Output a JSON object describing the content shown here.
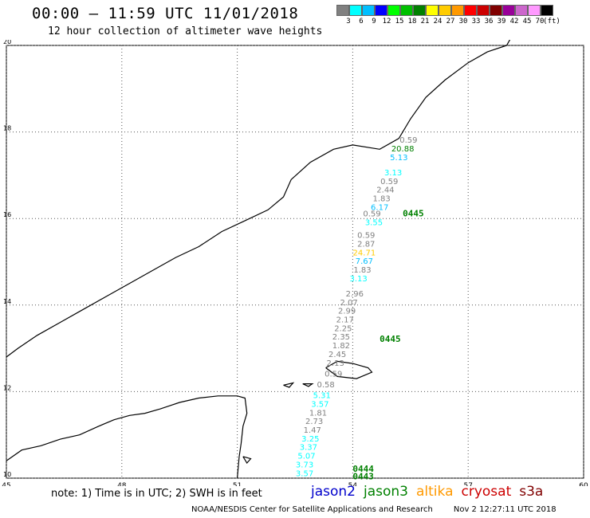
{
  "header": {
    "title": "00:00 — 11:59 UTC 11/01/2018",
    "subtitle": "12 hour collection of altimeter wave heights"
  },
  "legend": {
    "colors": [
      "#808080",
      "#00ffff",
      "#00bfff",
      "#0000ff",
      "#00ff00",
      "#00c000",
      "#008000",
      "#ffff00",
      "#ffcc00",
      "#ff9900",
      "#ff0000",
      "#cc0000",
      "#800000",
      "#990099",
      "#cc66cc",
      "#ff99ff",
      "#000000"
    ],
    "labels": [
      "3",
      "6",
      "9",
      "12",
      "15",
      "18",
      "21",
      "24",
      "27",
      "30",
      "33",
      "36",
      "39",
      "42",
      "45",
      "70",
      "(ft)"
    ]
  },
  "axes": {
    "x_ticks": [
      "45",
      "48",
      "51",
      "54",
      "57",
      "60"
    ],
    "y_ticks": [
      "20",
      "18",
      "16",
      "14",
      "12",
      "10"
    ],
    "xlim": [
      45,
      60
    ],
    "ylim": [
      10,
      20
    ],
    "grid": true
  },
  "coastline": {
    "main": [
      [
        45,
        10.4
      ],
      [
        45.4,
        10.65
      ],
      [
        45.9,
        10.75
      ],
      [
        46.4,
        10.9
      ],
      [
        46.9,
        11.0
      ],
      [
        47.4,
        11.2
      ],
      [
        47.8,
        11.35
      ],
      [
        48.2,
        11.45
      ],
      [
        48.6,
        11.5
      ],
      [
        49,
        11.6
      ],
      [
        49.5,
        11.75
      ],
      [
        50,
        11.85
      ],
      [
        50.5,
        11.9
      ],
      [
        51.0,
        11.9
      ],
      [
        51.2,
        11.85
      ],
      [
        51.25,
        11.5
      ],
      [
        51.15,
        11.2
      ],
      [
        51.1,
        10.8
      ],
      [
        51.05,
        10.5
      ],
      [
        51.0,
        10.0
      ]
    ],
    "arabia": [
      [
        45,
        12.8
      ],
      [
        45.3,
        13.0
      ],
      [
        45.8,
        13.3
      ],
      [
        46.4,
        13.6
      ],
      [
        47,
        13.9
      ],
      [
        47.6,
        14.2
      ],
      [
        48.2,
        14.5
      ],
      [
        48.8,
        14.8
      ],
      [
        49.4,
        15.1
      ],
      [
        50,
        15.35
      ],
      [
        50.6,
        15.7
      ],
      [
        51.2,
        15.95
      ],
      [
        51.8,
        16.2
      ],
      [
        52.2,
        16.5
      ],
      [
        52.4,
        16.9
      ],
      [
        52.9,
        17.3
      ],
      [
        53.5,
        17.6
      ],
      [
        54,
        17.7
      ],
      [
        54.7,
        17.6
      ],
      [
        55.2,
        17.85
      ],
      [
        55.5,
        18.3
      ],
      [
        55.9,
        18.8
      ],
      [
        56.4,
        19.2
      ],
      [
        57,
        19.6
      ],
      [
        57.5,
        19.85
      ],
      [
        58,
        20.0
      ],
      [
        58.5,
        20.8
      ]
    ],
    "socotra": [
      [
        53.3,
        12.55
      ],
      [
        53.6,
        12.7
      ],
      [
        54.0,
        12.65
      ],
      [
        54.4,
        12.55
      ],
      [
        54.5,
        12.45
      ],
      [
        54.1,
        12.3
      ],
      [
        53.6,
        12.35
      ],
      [
        53.3,
        12.55
      ]
    ],
    "islets": [
      [
        [
          52.2,
          12.15
        ],
        [
          52.45,
          12.2
        ],
        [
          52.35,
          12.1
        ],
        [
          52.2,
          12.15
        ]
      ],
      [
        [
          52.7,
          12.18
        ],
        [
          52.95,
          12.18
        ],
        [
          52.85,
          12.12
        ],
        [
          52.7,
          12.18
        ]
      ],
      [
        [
          51.15,
          10.5
        ],
        [
          51.35,
          10.45
        ],
        [
          51.25,
          10.35
        ],
        [
          51.15,
          10.5
        ]
      ]
    ]
  },
  "tracks": [
    {
      "sat": "jason3",
      "label": "0445",
      "lat": 16.05,
      "lon": 55.3
    },
    {
      "sat": "jason3",
      "label": "0445",
      "lat": 13.15,
      "lon": 54.7
    },
    {
      "sat": "jason3",
      "label": "0444",
      "lat": 10.15,
      "lon": 54.0
    },
    {
      "sat": "jason3",
      "label": "0443",
      "lat": 9.97,
      "lon": 54.0
    }
  ],
  "observations": [
    {
      "v": "0.59",
      "lat": 17.75,
      "lon": 55.45,
      "c": "#808080"
    },
    {
      "v": "20.88",
      "lat": 17.55,
      "lon": 55.3,
      "c": "#008000"
    },
    {
      "v": "5.13",
      "lat": 17.35,
      "lon": 55.2,
      "c": "#00bfff"
    },
    {
      "v": "3.13",
      "lat": 17.0,
      "lon": 55.05,
      "c": "#00ffff"
    },
    {
      "v": "0.59",
      "lat": 16.8,
      "lon": 54.95,
      "c": "#808080"
    },
    {
      "v": "2.44",
      "lat": 16.6,
      "lon": 54.85,
      "c": "#808080"
    },
    {
      "v": "1.83",
      "lat": 16.4,
      "lon": 54.75,
      "c": "#808080"
    },
    {
      "v": "6.17",
      "lat": 16.2,
      "lon": 54.7,
      "c": "#00bfff"
    },
    {
      "v": "0.59",
      "lat": 16.05,
      "lon": 54.5,
      "c": "#808080"
    },
    {
      "v": "3.55",
      "lat": 15.85,
      "lon": 54.55,
      "c": "#00ffff"
    },
    {
      "v": "0.59",
      "lat": 15.55,
      "lon": 54.35,
      "c": "#808080"
    },
    {
      "v": "2.87",
      "lat": 15.35,
      "lon": 54.35,
      "c": "#808080"
    },
    {
      "v": "24.71",
      "lat": 15.15,
      "lon": 54.3,
      "c": "#ffcc00"
    },
    {
      "v": "7.67",
      "lat": 14.95,
      "lon": 54.3,
      "c": "#00bfff"
    },
    {
      "v": "1.83",
      "lat": 14.75,
      "lon": 54.25,
      "c": "#808080"
    },
    {
      "v": "3.13",
      "lat": 14.55,
      "lon": 54.15,
      "c": "#00ffff"
    },
    {
      "v": "2.96",
      "lat": 14.2,
      "lon": 54.05,
      "c": "#808080"
    },
    {
      "v": "2.07",
      "lat": 14.0,
      "lon": 53.9,
      "c": "#808080"
    },
    {
      "v": "2.99",
      "lat": 13.8,
      "lon": 53.85,
      "c": "#808080"
    },
    {
      "v": "2.17",
      "lat": 13.6,
      "lon": 53.8,
      "c": "#808080"
    },
    {
      "v": "2.25",
      "lat": 13.4,
      "lon": 53.75,
      "c": "#808080"
    },
    {
      "v": "2.35",
      "lat": 13.2,
      "lon": 53.7,
      "c": "#808080"
    },
    {
      "v": "1.82",
      "lat": 13.0,
      "lon": 53.7,
      "c": "#808080"
    },
    {
      "v": "2.45",
      "lat": 12.8,
      "lon": 53.6,
      "c": "#808080"
    },
    {
      "v": "2.13",
      "lat": 12.6,
      "lon": 53.55,
      "c": "#808080"
    },
    {
      "v": "0.59",
      "lat": 12.35,
      "lon": 53.5,
      "c": "#808080"
    },
    {
      "v": "0.58",
      "lat": 12.1,
      "lon": 53.3,
      "c": "#808080"
    },
    {
      "v": "5.31",
      "lat": 11.85,
      "lon": 53.2,
      "c": "#00ffff"
    },
    {
      "v": "3.57",
      "lat": 11.65,
      "lon": 53.15,
      "c": "#00ffff"
    },
    {
      "v": "1.81",
      "lat": 11.45,
      "lon": 53.1,
      "c": "#808080"
    },
    {
      "v": "2.73",
      "lat": 11.25,
      "lon": 53.0,
      "c": "#808080"
    },
    {
      "v": "1.47",
      "lat": 11.05,
      "lon": 52.95,
      "c": "#808080"
    },
    {
      "v": "3.25",
      "lat": 10.85,
      "lon": 52.9,
      "c": "#00ffff"
    },
    {
      "v": "3.37",
      "lat": 10.65,
      "lon": 52.85,
      "c": "#00ffff"
    },
    {
      "v": "5.07",
      "lat": 10.45,
      "lon": 52.8,
      "c": "#00ffff"
    },
    {
      "v": "3.73",
      "lat": 10.25,
      "lon": 52.75,
      "c": "#00ffff"
    },
    {
      "v": "3.57",
      "lat": 10.05,
      "lon": 52.75,
      "c": "#00ffff"
    }
  ],
  "footer": {
    "note": "note: 1) Time is in UTC; 2) SWH is in feet",
    "satellites": [
      {
        "name": "jason2",
        "color": "#0000cc"
      },
      {
        "name": "jason3",
        "color": "#008000"
      },
      {
        "name": "altika",
        "color": "#ff9900"
      },
      {
        "name": "cryosat",
        "color": "#cc0000"
      },
      {
        "name": "s3a",
        "color": "#800000"
      }
    ],
    "credit": "NOAA/NESDIS Center for Satellite Applications and Research",
    "timestamp": "Nov  2 12:27:11 UTC 2018"
  }
}
